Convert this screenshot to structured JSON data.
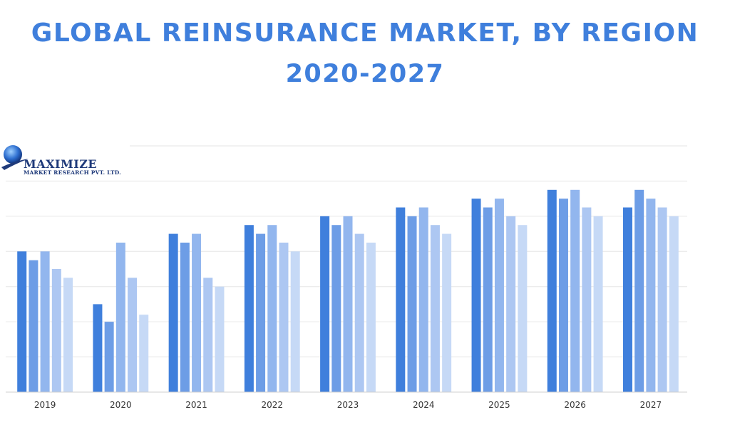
{
  "title_line1": "GLOBAL REINSURANCE MARKET, BY REGION",
  "title_line2": "2020-2027",
  "logo": {
    "name": "MAXIMIZE",
    "subtitle": "MARKET RESEARCH PVT. LTD."
  },
  "colors": [
    "#3f7fdc",
    "#6d9de6",
    "#92b6ee",
    "#adc7f2",
    "#c6d9f6"
  ],
  "chart_data": {
    "type": "bar",
    "categories": [
      "2019",
      "2020",
      "2021",
      "2022",
      "2023",
      "2024",
      "2025",
      "2026",
      "2027"
    ],
    "series": [
      {
        "values": [
          8,
          5,
          9,
          9.5,
          10,
          10.5,
          11,
          11.5,
          10.5
        ]
      },
      {
        "values": [
          7.5,
          4,
          8.5,
          9,
          9.5,
          10,
          10.5,
          11,
          11.5
        ]
      },
      {
        "values": [
          8,
          8.5,
          9,
          9.5,
          10,
          10.5,
          11,
          11.5,
          11
        ]
      },
      {
        "values": [
          7,
          6.5,
          6.5,
          8.5,
          9,
          9.5,
          10,
          10.5,
          10.5
        ]
      },
      {
        "values": [
          6.5,
          4.4,
          6,
          8,
          8.5,
          9,
          9.5,
          10,
          10
        ]
      }
    ],
    "ylim": [
      0,
      14
    ],
    "grid": true,
    "legend": "none"
  }
}
